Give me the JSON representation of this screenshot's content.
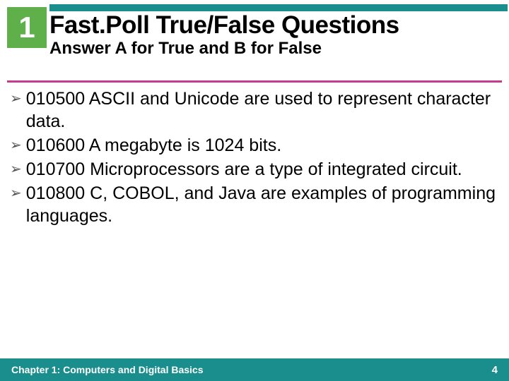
{
  "slide": {
    "number": "1",
    "title": "Fast.Poll True/False Questions",
    "subtitle": "Answer A for True and B for False",
    "bullets": [
      "010500 ASCII and Unicode are used to represent character data.",
      "010600 A megabyte is 1024 bits.",
      "010700 Microprocessors are a type of integrated circuit.",
      "010800 C, COBOL, and Java are examples of programming languages."
    ],
    "footer_text": "Chapter 1: Computers and Digital Basics",
    "page_number": "4"
  },
  "colors": {
    "green_box": "#5fb04b",
    "teal": "#1a8e8d",
    "magenta": "#c83a8e",
    "text": "#000000",
    "white": "#ffffff",
    "bullet_arrow": "#555555"
  },
  "typography": {
    "number_fontsize": 42,
    "title_fontsize": 35,
    "subtitle_fontsize": 24,
    "body_fontsize": 25,
    "footer_fontsize": 14
  }
}
